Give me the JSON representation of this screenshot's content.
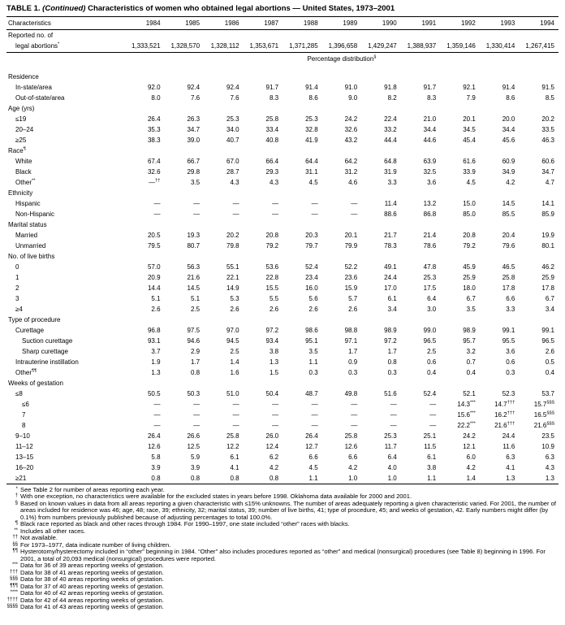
{
  "page": {
    "title_prefix": "TABLE 1.",
    "title_continued": "(Continued)",
    "title_rest": "Characteristics of women who obtained legal abortions — United States, 1973–2001"
  },
  "table": {
    "characteristics_header": "Characteristics",
    "years": [
      "1984",
      "1985",
      "1986",
      "1987",
      "1988",
      "1989",
      "1990",
      "1991",
      "1992",
      "1993",
      "1994"
    ],
    "reported": {
      "label_line1": "Reported no. of",
      "label_line2": "legal abortions",
      "label_sup": "*",
      "values": [
        "1,333,521",
        "1,328,570",
        "1,328,112",
        "1,353,671",
        "1,371,285",
        "1,396,658",
        "1,429,247",
        "1,388,937",
        "1,359,146",
        "1,330,414",
        "1,267,415"
      ]
    },
    "percentage_header": {
      "label": "Percentage distribution",
      "sup": "§"
    },
    "sections": [
      {
        "label": "Residence",
        "rows": [
          {
            "label": "In-state/area",
            "indent": 1,
            "values": [
              "92.0",
              "92.4",
              "92.4",
              "91.7",
              "91.4",
              "91.0",
              "91.8",
              "91.7",
              "92.1",
              "91.4",
              "91.5"
            ]
          },
          {
            "label": "Out-of-state/area",
            "indent": 1,
            "values": [
              "8.0",
              "7.6",
              "7.6",
              "8.3",
              "8.6",
              "9.0",
              "8.2",
              "8.3",
              "7.9",
              "8.6",
              "8.5"
            ]
          }
        ]
      },
      {
        "label": "Age (yrs)",
        "rows": [
          {
            "label": "≤19",
            "indent": 1,
            "values": [
              "26.4",
              "26.3",
              "25.3",
              "25.8",
              "25.3",
              "24.2",
              "22.4",
              "21.0",
              "20.1",
              "20.0",
              "20.2"
            ]
          },
          {
            "label": "20–24",
            "indent": 1,
            "values": [
              "35.3",
              "34.7",
              "34.0",
              "33.4",
              "32.8",
              "32.6",
              "33.2",
              "34.4",
              "34.5",
              "34.4",
              "33.5"
            ]
          },
          {
            "label": "≥25",
            "indent": 1,
            "values": [
              "38.3",
              "39.0",
              "40.7",
              "40.8",
              "41.9",
              "43.2",
              "44.4",
              "44.6",
              "45.4",
              "45.6",
              "46.3"
            ]
          }
        ]
      },
      {
        "label": "Race",
        "sup": "¶",
        "rows": [
          {
            "label": "White",
            "indent": 1,
            "values": [
              "67.4",
              "66.7",
              "67.0",
              "66.4",
              "64.4",
              "64.2",
              "64.8",
              "63.9",
              "61.6",
              "60.9",
              "60.6"
            ]
          },
          {
            "label": "Black",
            "indent": 1,
            "values": [
              "32.6",
              "29.8",
              "28.7",
              "29.3",
              "31.1",
              "31.2",
              "31.9",
              "32.5",
              "33.9",
              "34.9",
              "34.7"
            ]
          },
          {
            "label": "Other",
            "sup": "**",
            "indent": 1,
            "values": [
              {
                "v": "—",
                "sup": "††"
              },
              "3.5",
              "4.3",
              "4.3",
              "4.5",
              "4.6",
              "3.3",
              "3.6",
              "4.5",
              "4.2",
              "4.7"
            ]
          }
        ]
      },
      {
        "label": "Ethnicity",
        "rows": [
          {
            "label": "Hispanic",
            "indent": 1,
            "values": [
              "—",
              "—",
              "—",
              "—",
              "—",
              "—",
              "11.4",
              "13.2",
              "15.0",
              "14.5",
              "14.1"
            ]
          },
          {
            "label": "Non-Hispanic",
            "indent": 1,
            "values": [
              "—",
              "—",
              "—",
              "—",
              "—",
              "—",
              "88.6",
              "86.8",
              "85.0",
              "85.5",
              "85.9"
            ]
          }
        ]
      },
      {
        "label": "Marital status",
        "rows": [
          {
            "label": "Married",
            "indent": 1,
            "values": [
              "20.5",
              "19.3",
              "20.2",
              "20.8",
              "20.3",
              "20.1",
              "21.7",
              "21.4",
              "20.8",
              "20.4",
              "19.9"
            ]
          },
          {
            "label": "Unmarried",
            "indent": 1,
            "values": [
              "79.5",
              "80.7",
              "79.8",
              "79.2",
              "79.7",
              "79.9",
              "78.3",
              "78.6",
              "79.2",
              "79.6",
              "80.1"
            ]
          }
        ]
      },
      {
        "label": "No. of live births",
        "rows": [
          {
            "label": "0",
            "indent": 1,
            "values": [
              "57.0",
              "56.3",
              "55.1",
              "53.6",
              "52.4",
              "52.2",
              "49.1",
              "47.8",
              "45.9",
              "46.5",
              "46.2"
            ]
          },
          {
            "label": "1",
            "indent": 1,
            "values": [
              "20.9",
              "21.6",
              "22.1",
              "22.8",
              "23.4",
              "23.6",
              "24.4",
              "25.3",
              "25.9",
              "25.8",
              "25.9"
            ]
          },
          {
            "label": "2",
            "indent": 1,
            "values": [
              "14.4",
              "14.5",
              "14.9",
              "15.5",
              "16.0",
              "15.9",
              "17.0",
              "17.5",
              "18.0",
              "17.8",
              "17.8"
            ]
          },
          {
            "label": "3",
            "indent": 1,
            "values": [
              "5.1",
              "5.1",
              "5.3",
              "5.5",
              "5.6",
              "5.7",
              "6.1",
              "6.4",
              "6.7",
              "6.6",
              "6.7"
            ]
          },
          {
            "label": "≥4",
            "indent": 1,
            "values": [
              "2.6",
              "2.5",
              "2.6",
              "2.6",
              "2.6",
              "2.6",
              "3.4",
              "3.0",
              "3.5",
              "3.3",
              "3.4"
            ]
          }
        ]
      },
      {
        "label": "Type of procedure",
        "rows": [
          {
            "label": "Curettage",
            "indent": 1,
            "values": [
              "96.8",
              "97.5",
              "97.0",
              "97.2",
              "98.6",
              "98.8",
              "98.9",
              "99.0",
              "98.9",
              "99.1",
              "99.1"
            ]
          },
          {
            "label": "Suction curettage",
            "indent": 2,
            "values": [
              "93.1",
              "94.6",
              "94.5",
              "93.4",
              "95.1",
              "97.1",
              "97.2",
              "96.5",
              "95.7",
              "95.5",
              "96.5"
            ]
          },
          {
            "label": "Sharp curettage",
            "indent": 2,
            "values": [
              "3.7",
              "2.9",
              "2.5",
              "3.8",
              "3.5",
              "1.7",
              "1.7",
              "2.5",
              "3.2",
              "3.6",
              "2.6"
            ]
          },
          {
            "label": "Intrauterine instillation",
            "indent": 1,
            "values": [
              "1.9",
              "1.7",
              "1.4",
              "1.3",
              "1.1",
              "0.9",
              "0.8",
              "0.6",
              "0.7",
              "0.6",
              "0.5"
            ]
          },
          {
            "label": "Other",
            "sup": "¶¶",
            "indent": 1,
            "values": [
              "1.3",
              "0.8",
              "1.6",
              "1.5",
              "0.3",
              "0.3",
              "0.3",
              "0.4",
              "0.4",
              "0.3",
              "0.4"
            ]
          }
        ]
      },
      {
        "label": "Weeks of gestation",
        "rows": [
          {
            "label": "≤8",
            "indent": 1,
            "values": [
              "50.5",
              "50.3",
              "51.0",
              "50.4",
              "48.7",
              "49.8",
              "51.6",
              "52.4",
              "52.1",
              "52.3",
              "53.7"
            ]
          },
          {
            "label": "≤6",
            "indent": 2,
            "values": [
              "—",
              "—",
              "—",
              "—",
              "—",
              "—",
              "—",
              "—",
              {
                "v": "14.3",
                "sup": "***"
              },
              {
                "v": "14.7",
                "sup": "†††"
              },
              {
                "v": "15.7",
                "sup": "§§§"
              }
            ]
          },
          {
            "label": "7",
            "indent": 2,
            "values": [
              "—",
              "—",
              "—",
              "—",
              "—",
              "—",
              "—",
              "—",
              {
                "v": "15.6",
                "sup": "***"
              },
              {
                "v": "16.2",
                "sup": "†††"
              },
              {
                "v": "16.5",
                "sup": "§§§"
              }
            ]
          },
          {
            "label": "8",
            "indent": 2,
            "values": [
              "—",
              "—",
              "—",
              "—",
              "—",
              "—",
              "—",
              "—",
              {
                "v": "22.2",
                "sup": "***"
              },
              {
                "v": "21.6",
                "sup": "†††"
              },
              {
                "v": "21.6",
                "sup": "§§§"
              }
            ]
          },
          {
            "label": "9–10",
            "indent": 1,
            "values": [
              "26.4",
              "26.6",
              "25.8",
              "26.0",
              "26.4",
              "25.8",
              "25.3",
              "25.1",
              "24.2",
              "24.4",
              "23.5"
            ]
          },
          {
            "label": "11–12",
            "indent": 1,
            "values": [
              "12.6",
              "12.5",
              "12.2",
              "12.4",
              "12.7",
              "12.6",
              "11.7",
              "11.5",
              "12.1",
              "11.6",
              "10.9"
            ]
          },
          {
            "label": "13–15",
            "indent": 1,
            "values": [
              "5.8",
              "5.9",
              "6.1",
              "6.2",
              "6.6",
              "6.6",
              "6.4",
              "6.1",
              "6.0",
              "6.3",
              "6.3"
            ]
          },
          {
            "label": "16–20",
            "indent": 1,
            "values": [
              "3.9",
              "3.9",
              "4.1",
              "4.2",
              "4.5",
              "4.2",
              "4.0",
              "3.8",
              "4.2",
              "4.1",
              "4.3"
            ]
          },
          {
            "label": "≥21",
            "indent": 1,
            "values": [
              "0.8",
              "0.8",
              "0.8",
              "0.8",
              "1.1",
              "1.0",
              "1.0",
              "1.1",
              "1.4",
              "1.3",
              "1.3"
            ]
          }
        ]
      }
    ]
  },
  "footnotes": [
    {
      "sym": "*",
      "text": "See Table 2 for number of areas reporting each year."
    },
    {
      "sym": "†",
      "text": "With one exception, no characteristics were available for the excluded states in years before 1998. Oklahoma data available for 2000 and 2001."
    },
    {
      "sym": "§",
      "text": "Based on known values in data from all areas reporting a given characteristic with ≤15% unknowns. The number of areas adequately reporting a given characteristic varied. For 2001, the number of areas included for residence was 46; age, 48; race, 39; ethnicity, 32; marital status, 39; number of live births, 41; type of procedure, 45; and weeks of gestation, 42. Early numbers might differ (by 0.1%) from numbers previously published because of adjusting percentages to total 100.0%."
    },
    {
      "sym": "¶",
      "text": "Black race reported as black and other races through 1984. For 1990–1997, one state included “other” races with blacks."
    },
    {
      "sym": "**",
      "text": "Includes all other races."
    },
    {
      "sym": "††",
      "text": "Not available."
    },
    {
      "sym": "§§",
      "text": "For 1973–1977, data indicate number of living children."
    },
    {
      "sym": "¶¶",
      "text": "Hysterotomy/hysterectomy included in “other” beginning in 1984. “Other” also includes procedures reported as “other” and medical (nonsurgical) procedures (see Table 8) beginning in 1996. For 2001, a total of 20,093 medical (nonsurgical) procedures were reported."
    },
    {
      "sym": "***",
      "text": "Data for 36 of 39 areas reporting weeks of gestation."
    },
    {
      "sym": "†††",
      "text": "Data for 38 of 41 areas reporting weeks of gestation."
    },
    {
      "sym": "§§§",
      "text": "Data for 38 of 40 areas reporting weeks of gestation."
    },
    {
      "sym": "¶¶¶",
      "text": "Data for 37 of 40 areas reporting weeks of gestation."
    },
    {
      "sym": "****",
      "text": "Data for 40 of 42 areas reporting weeks of gestation."
    },
    {
      "sym": "††††",
      "text": "Data for 42 of 44 areas reporting weeks of gestation."
    },
    {
      "sym": "§§§§",
      "text": "Data for 41 of 43 areas reporting weeks of gestation."
    }
  ]
}
